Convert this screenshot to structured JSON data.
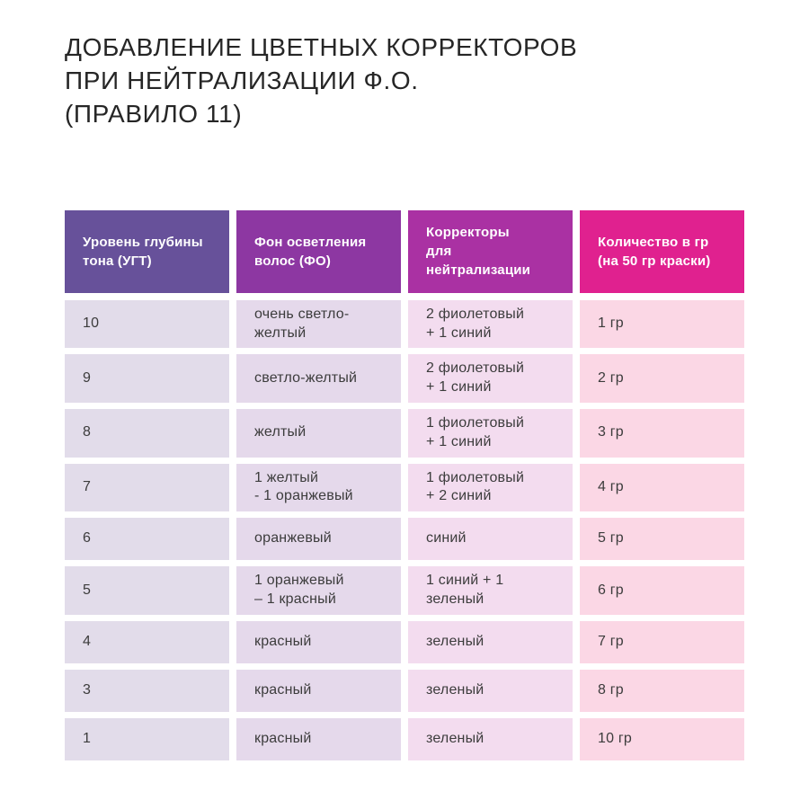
{
  "title": {
    "text": "ДОБАВЛЕНИЕ ЦВЕТНЫХ КОРРЕКТОРОВ\nПРИ НЕЙТРАЛИЗАЦИИ Ф.О.\n(ПРАВИЛО 11)"
  },
  "chart_data": {
    "type": "table",
    "title": "Добавление цветных корректоров при нейтрализации Ф.О. (Правило 11)",
    "columns": [
      "Уровень глубины\nтона (УГТ)",
      "Фон осветления\nволос (ФО)",
      "Корректоры\nдля нейтрализации",
      "Количество в гр\n(на 50 гр краски)"
    ],
    "rows": [
      [
        "10",
        "очень светло-желтый",
        "2 фиолетовый\n+ 1 синий",
        "1 гр"
      ],
      [
        "9",
        "светло-желтый",
        "2 фиолетовый\n+ 1 синий",
        "2 гр"
      ],
      [
        "8",
        "желтый",
        "1 фиолетовый\n+ 1 синий",
        "3 гр"
      ],
      [
        "7",
        "1 желтый\n- 1 оранжевый",
        "1 фиолетовый\n+ 2 синий",
        "4 гр"
      ],
      [
        "6",
        "оранжевый",
        "синий",
        "5 гр"
      ],
      [
        "5",
        "1 оранжевый\n– 1 красный",
        "1 синий + 1 зеленый",
        "6 гр"
      ],
      [
        "4",
        "красный",
        "зеленый",
        "7 гр"
      ],
      [
        "3",
        "красный",
        "зеленый",
        "8 гр"
      ],
      [
        "1",
        "красный",
        "зеленый",
        "10 гр"
      ]
    ],
    "header_colors": [
      "#67519a",
      "#8d37a2",
      "#aa31a3",
      "#e0218f"
    ],
    "header_text_color": "#ffffff",
    "column_cell_colors": [
      "#e2dcea",
      "#e5d9eb",
      "#f3dcef",
      "#fbd7e5"
    ],
    "body_text_color": "#3c3c3c",
    "background": "#ffffff",
    "legend_position": "none",
    "grid": false
  }
}
